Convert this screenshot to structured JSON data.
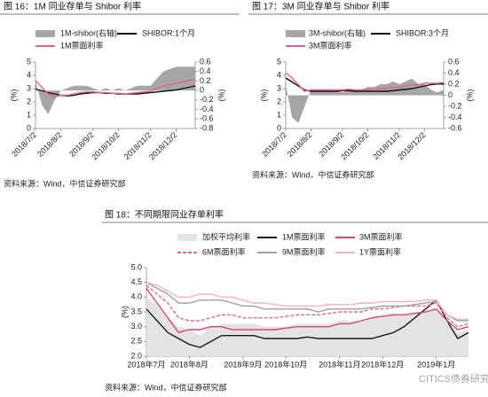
{
  "watermark": "CITICS债券研究",
  "chart_data": [
    {
      "type": "line",
      "title": "图 16：1M 同业存单与 Shibor 利率",
      "source": "资料来源：Wind，中信证券研究部",
      "y_label": "(%)",
      "y2_label": "(%)",
      "categories": [
        "2018/7/2",
        null,
        null,
        null,
        "2018/8/2",
        null,
        null,
        null,
        null,
        "2018/9/2",
        null,
        null,
        null,
        "2018/10/2",
        null,
        null,
        null,
        null,
        "2018/11/2",
        null,
        null,
        null,
        "2018/12/2",
        null,
        null,
        null
      ],
      "ylim": [
        0,
        5
      ],
      "yticks": [
        0,
        1,
        2,
        3,
        4,
        5
      ],
      "y2lim": [
        -0.8,
        0.6
      ],
      "y2ticks": [
        -0.8,
        -0.6,
        -0.4,
        -0.2,
        0,
        0.2,
        0.4,
        0.6
      ],
      "series": [
        {
          "name": "1M-shibor(右轴)",
          "color": "#a6a6a6",
          "style": "area",
          "axis": "y2",
          "values": [
            0.2,
            -0.3,
            -0.5,
            -0.2,
            0,
            0.05,
            0.1,
            0.1,
            0.1,
            0.05,
            0,
            0.05,
            0,
            0.05,
            0,
            0.05,
            0.1,
            0.1,
            0.1,
            0.25,
            0.4,
            0.45,
            0.5,
            0.5,
            0.5,
            0.5
          ]
        },
        {
          "name": "SHIBOR:1个月",
          "color": "#111111",
          "style": "line",
          "values": [
            2.95,
            2.85,
            2.7,
            2.6,
            2.5,
            2.45,
            2.5,
            2.6,
            2.65,
            2.7,
            2.7,
            2.65,
            2.65,
            2.6,
            2.6,
            2.6,
            2.6,
            2.65,
            2.7,
            2.75,
            2.8,
            2.85,
            2.9,
            3.0,
            3.1,
            3.2
          ]
        },
        {
          "name": "1M票面利率",
          "color": "#e8608a",
          "style": "line",
          "values": [
            3.6,
            3.1,
            2.6,
            2.4,
            2.5,
            2.5,
            2.6,
            2.7,
            2.75,
            2.75,
            2.7,
            2.7,
            2.65,
            2.65,
            2.6,
            2.65,
            2.7,
            2.75,
            2.8,
            3.0,
            3.2,
            3.3,
            3.4,
            3.5,
            3.6,
            3.7
          ]
        }
      ]
    },
    {
      "type": "line",
      "title": "图 17：3M 同业存单与 Shibor 利率",
      "source": "资料来源：Wind，中信证券研究部",
      "y_label": "(%)",
      "y2_label": "(%)",
      "categories": [
        "2018/7/2",
        null,
        null,
        null,
        "2018/8/2",
        null,
        null,
        null,
        null,
        "2018/9/2",
        null,
        null,
        null,
        "2018/10/2",
        null,
        null,
        null,
        null,
        "2018/11/2",
        null,
        null,
        null,
        "2018/12/2",
        null,
        null,
        null
      ],
      "ylim": [
        0,
        5
      ],
      "yticks": [
        0,
        1,
        2,
        3,
        4,
        5
      ],
      "y2lim": [
        -0.6,
        0.6
      ],
      "y2ticks": [
        -0.6,
        -0.4,
        -0.2,
        0,
        0.2,
        0.4,
        0.6
      ],
      "series": [
        {
          "name": "3M-shibor(右轴)",
          "color": "#a6a6a6",
          "style": "area",
          "axis": "y2",
          "values": [
            0.2,
            -0.4,
            -0.5,
            -0.2,
            0.1,
            0.1,
            0.1,
            0.1,
            0.1,
            0.05,
            0.1,
            0.1,
            0.1,
            0.15,
            0.15,
            0.2,
            0.2,
            0.25,
            0.2,
            0.25,
            0.3,
            0.2,
            0.2,
            0.1,
            0.05,
            0.1
          ]
        },
        {
          "name": "SHIBOR:3个月",
          "color": "#111111",
          "style": "line",
          "values": [
            3.8,
            3.5,
            3.2,
            2.9,
            2.8,
            2.8,
            2.8,
            2.8,
            2.8,
            2.85,
            2.85,
            2.8,
            2.8,
            2.8,
            2.8,
            2.8,
            2.8,
            2.85,
            2.9,
            2.95,
            3.0,
            3.1,
            3.2,
            3.3,
            3.35,
            3.35
          ]
        },
        {
          "name": "3M票面利率",
          "color": "#e8608a",
          "style": "line",
          "values": [
            4.2,
            3.8,
            3.3,
            2.8,
            2.9,
            2.9,
            2.9,
            2.9,
            2.9,
            2.9,
            2.95,
            2.9,
            2.9,
            2.95,
            2.95,
            3.0,
            3.0,
            3.1,
            3.1,
            3.2,
            3.3,
            3.3,
            3.4,
            3.4,
            3.4,
            3.45
          ]
        }
      ]
    },
    {
      "type": "line",
      "title": "图 18：不同期限同业存单利率",
      "source": "资料来源：Wind，中信证券研究部",
      "y_label": "(%)",
      "categories": [
        "2018年7月",
        null,
        null,
        null,
        "2018年8月",
        null,
        null,
        null,
        null,
        "2018年9月",
        null,
        null,
        null,
        "2018年10月",
        null,
        null,
        null,
        null,
        "2018年11月",
        null,
        null,
        null,
        "2018年12月",
        null,
        null,
        null,
        null,
        "2019年1月",
        null,
        null,
        null
      ],
      "ylim": [
        2.0,
        5.0
      ],
      "yticks": [
        {
          "value": 2.0,
          "label": "2.0"
        },
        2.5,
        {
          "value": 3.0,
          "label": "3.0"
        },
        3.5,
        {
          "value": 4.0,
          "label": "4.0"
        },
        4.5,
        {
          "value": 5.0,
          "label": "5.0"
        }
      ],
      "series": [
        {
          "name": "加权平均利率",
          "color": "#e3e3e3",
          "style": "area",
          "values": [
            4.0,
            3.7,
            3.3,
            3.0,
            2.9,
            2.7,
            3.0,
            3.1,
            3.1,
            3.1,
            3.1,
            3.0,
            3.0,
            3.0,
            3.1,
            3.1,
            3.1,
            3.1,
            3.2,
            3.2,
            3.2,
            3.3,
            3.3,
            3.4,
            3.4,
            3.5,
            3.5,
            3.6,
            3.1,
            2.8,
            2.9
          ]
        },
        {
          "name": "1M票面利率",
          "color": "#1a1a1a",
          "style": "line",
          "values": [
            3.6,
            3.2,
            2.8,
            2.6,
            2.4,
            2.3,
            2.5,
            2.7,
            2.7,
            2.7,
            2.7,
            2.6,
            2.6,
            2.6,
            2.6,
            2.65,
            2.6,
            2.6,
            2.6,
            2.6,
            2.6,
            2.6,
            2.7,
            2.8,
            3.0,
            3.3,
            3.6,
            3.9,
            3.2,
            2.6,
            2.8
          ]
        },
        {
          "name": "3M票面利率",
          "color": "#d9476a",
          "style": "line",
          "values": [
            4.3,
            3.8,
            3.3,
            2.8,
            2.9,
            2.9,
            3.0,
            3.0,
            2.9,
            2.9,
            2.9,
            2.9,
            2.9,
            2.95,
            3.0,
            3.0,
            3.0,
            3.0,
            3.1,
            3.1,
            3.2,
            3.3,
            3.35,
            3.4,
            3.4,
            3.45,
            3.5,
            3.6,
            3.2,
            2.9,
            3.0
          ]
        },
        {
          "name": "6M票面利率",
          "color": "#e06a8a",
          "style": "dashed",
          "values": [
            4.4,
            4.1,
            3.8,
            3.3,
            3.2,
            3.2,
            3.3,
            3.4,
            3.4,
            3.3,
            3.3,
            3.3,
            3.3,
            3.35,
            3.4,
            3.4,
            3.4,
            3.45,
            3.5,
            3.5,
            3.5,
            3.6,
            3.6,
            3.65,
            3.7,
            3.7,
            3.7,
            3.8,
            3.3,
            3.0,
            3.1
          ]
        },
        {
          "name": "9M票面利率",
          "color": "#a0a0a0",
          "style": "line",
          "values": [
            4.5,
            4.3,
            4.1,
            3.8,
            3.8,
            3.9,
            3.9,
            3.9,
            3.8,
            3.7,
            3.7,
            3.6,
            3.6,
            3.6,
            3.6,
            3.6,
            3.5,
            3.6,
            3.6,
            3.6,
            3.6,
            3.65,
            3.7,
            3.7,
            3.7,
            3.75,
            3.8,
            3.85,
            3.4,
            3.2,
            3.2
          ]
        },
        {
          "name": "1Y票面利率",
          "color": "#f4b3c4",
          "style": "line",
          "values": [
            4.5,
            4.4,
            4.2,
            4.0,
            4.0,
            4.1,
            4.1,
            4.0,
            4.0,
            3.9,
            3.8,
            3.8,
            3.75,
            3.7,
            3.7,
            3.7,
            3.7,
            3.75,
            3.75,
            3.75,
            3.8,
            3.8,
            3.85,
            3.85,
            3.85,
            3.85,
            3.9,
            3.9,
            3.4,
            3.25,
            3.25
          ]
        }
      ]
    }
  ]
}
